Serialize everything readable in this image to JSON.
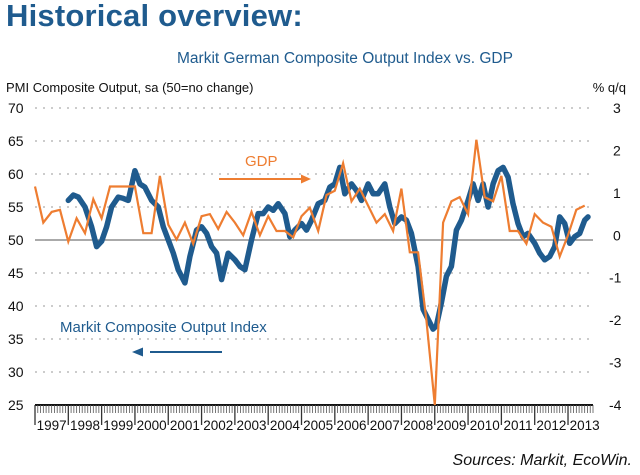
{
  "page": {
    "title": "Historical overview:",
    "source": "Sources: Markit, EcoWin."
  },
  "chart_data": {
    "type": "line",
    "title": "Markit German Composite Output Index vs. GDP",
    "ylabel_left": "PMI Composite Output, sa (50=no change)",
    "ylabel_right": "% q/q",
    "left_axis": {
      "ylim": [
        25,
        70
      ],
      "ticks": [
        70,
        65,
        60,
        55,
        50,
        45,
        40,
        35,
        30,
        25
      ]
    },
    "right_axis": {
      "ylim": [
        -4,
        3
      ],
      "ticks": [
        3,
        2,
        1,
        0,
        -1,
        -2,
        -3,
        -4
      ]
    },
    "xlim": [
      1997.0,
      2013.75
    ],
    "x_tick_labels": [
      "1997",
      "1998",
      "1999",
      "2000",
      "2001",
      "2002",
      "2003",
      "2004",
      "2005",
      "2006",
      "2007",
      "2008",
      "2009",
      "2010",
      "2011",
      "2012",
      "2013"
    ],
    "grid": "horizontal-dotted",
    "reference_line": {
      "axis": "left",
      "value": 50
    },
    "colors": {
      "pmi": "#1f5b8e",
      "gdp": "#ee7d31",
      "title": "#1f5b8e"
    },
    "annotations": [
      {
        "text": "GDP",
        "series": "gdp",
        "arrow": "right"
      },
      {
        "text": "Markit Composite Output Index",
        "series": "pmi",
        "arrow": "left"
      }
    ],
    "series": [
      {
        "name": "Markit Composite Output Index",
        "axis": "left",
        "x": [
          1998.0,
          1998.15,
          1998.3,
          1998.5,
          1998.7,
          1998.85,
          1999.0,
          1999.15,
          1999.3,
          1999.5,
          1999.65,
          1999.8,
          2000.0,
          2000.15,
          2000.3,
          2000.5,
          2000.7,
          2000.85,
          2001.0,
          2001.15,
          2001.3,
          2001.5,
          2001.65,
          2001.85,
          2002.0,
          2002.15,
          2002.3,
          2002.45,
          2002.6,
          2002.8,
          2003.0,
          2003.15,
          2003.3,
          2003.5,
          2003.7,
          2003.85,
          2004.0,
          2004.15,
          2004.3,
          2004.5,
          2004.65,
          2004.8,
          2005.0,
          2005.15,
          2005.3,
          2005.5,
          2005.7,
          2005.85,
          2006.0,
          2006.15,
          2006.3,
          2006.5,
          2006.65,
          2006.8,
          2007.0,
          2007.15,
          2007.3,
          2007.5,
          2007.65,
          2007.8,
          2008.0,
          2008.15,
          2008.3,
          2008.5,
          2008.65,
          2008.8,
          2008.95,
          2009.05,
          2009.2,
          2009.35,
          2009.5,
          2009.65,
          2009.8,
          2010.0,
          2010.15,
          2010.3,
          2010.45,
          2010.6,
          2010.75,
          2010.9,
          2011.05,
          2011.2,
          2011.35,
          2011.5,
          2011.65,
          2011.8,
          2012.0,
          2012.15,
          2012.3,
          2012.45,
          2012.6,
          2012.75,
          2012.9,
          2013.05,
          2013.2,
          2013.35,
          2013.5,
          2013.6
        ],
        "values": [
          56.0,
          56.8,
          56.5,
          55.0,
          52.0,
          49.0,
          49.8,
          52.0,
          55.0,
          56.5,
          56.3,
          56.0,
          60.5,
          58.5,
          58.0,
          56.0,
          55.0,
          52.0,
          50.0,
          48.0,
          45.5,
          43.5,
          47.5,
          51.5,
          52.0,
          51.0,
          49.0,
          48.0,
          44.0,
          48.0,
          47.0,
          46.0,
          45.5,
          50.0,
          54.0,
          54.0,
          55.0,
          54.5,
          55.5,
          54.0,
          50.5,
          51.5,
          52.5,
          51.5,
          53.0,
          55.5,
          56.0,
          58.0,
          58.5,
          61.0,
          57.0,
          58.5,
          57.5,
          56.0,
          58.5,
          57.0,
          57.0,
          58.5,
          55.0,
          52.5,
          53.5,
          53.0,
          51.0,
          46.0,
          39.5,
          38.0,
          36.5,
          37.0,
          40.5,
          44.5,
          46.0,
          51.5,
          53.0,
          56.0,
          58.5,
          56.0,
          58.5,
          55.0,
          58.5,
          60.5,
          61.0,
          59.5,
          55.5,
          52.5,
          50.5,
          51.0,
          49.5,
          48.0,
          47.0,
          47.5,
          49.0,
          53.5,
          52.5,
          49.5,
          50.5,
          51.0,
          53.0,
          53.5
        ]
      },
      {
        "name": "GDP",
        "axis": "right",
        "x": [
          1997.0,
          1997.25,
          1997.5,
          1997.75,
          1998.0,
          1998.25,
          1998.5,
          1998.75,
          1999.0,
          1999.25,
          1999.5,
          1999.75,
          2000.0,
          2000.25,
          2000.5,
          2000.75,
          2001.0,
          2001.25,
          2001.5,
          2001.75,
          2002.0,
          2002.25,
          2002.5,
          2002.75,
          2003.0,
          2003.25,
          2003.5,
          2003.75,
          2004.0,
          2004.25,
          2004.5,
          2004.75,
          2005.0,
          2005.25,
          2005.5,
          2005.75,
          2006.0,
          2006.25,
          2006.5,
          2006.75,
          2007.0,
          2007.25,
          2007.5,
          2007.75,
          2008.0,
          2008.25,
          2008.5,
          2008.75,
          2009.0,
          2009.25,
          2009.5,
          2009.75,
          2010.0,
          2010.25,
          2010.5,
          2010.75,
          2011.0,
          2011.25,
          2011.5,
          2011.75,
          2012.0,
          2012.25,
          2012.5,
          2012.75,
          2013.0,
          2013.25,
          2013.5
        ],
        "values": [
          1.15,
          0.3,
          0.55,
          0.6,
          -0.15,
          0.4,
          0.05,
          0.85,
          0.4,
          1.15,
          1.15,
          1.15,
          1.15,
          0.05,
          0.05,
          1.4,
          0.25,
          -0.1,
          0.3,
          -0.2,
          0.45,
          0.5,
          0.15,
          0.55,
          0.3,
          0.0,
          0.55,
          0.0,
          0.45,
          0.1,
          0.1,
          -0.05,
          0.45,
          0.65,
          0.1,
          0.95,
          1.05,
          1.7,
          0.8,
          1.1,
          0.7,
          0.3,
          0.5,
          0.1,
          1.1,
          -0.4,
          -0.4,
          -2.0,
          -4.0,
          0.3,
          0.8,
          0.9,
          0.5,
          2.25,
          0.9,
          0.8,
          1.4,
          0.1,
          0.1,
          -0.2,
          0.5,
          0.3,
          0.2,
          -0.5,
          0.0,
          0.6,
          0.7
        ]
      }
    ]
  }
}
